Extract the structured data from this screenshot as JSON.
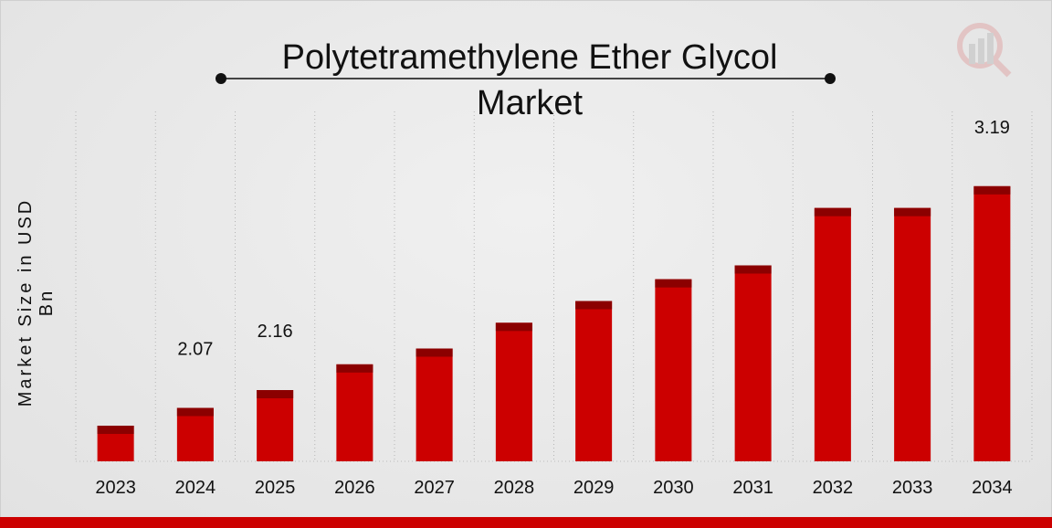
{
  "chart_data": {
    "type": "bar",
    "title": "Polytetramethylene Ether Glycol Market",
    "title_lines": [
      "Polytetramethylene Ether Glycol",
      "Market"
    ],
    "xlabel": "",
    "ylabel": "Market Size in USD Bn",
    "categories": [
      "2023",
      "2024",
      "2025",
      "2026",
      "2027",
      "2028",
      "2029",
      "2030",
      "2031",
      "2032",
      "2033",
      "2034"
    ],
    "values": [
      1.98,
      2.07,
      2.16,
      2.29,
      2.37,
      2.5,
      2.61,
      2.72,
      2.79,
      3.08,
      3.08,
      3.19
    ],
    "data_labels": {
      "1": "2.07",
      "2": "2.16",
      "11": "3.19"
    },
    "ylim": [
      1.8,
      3.3
    ],
    "grid": "vertical-dashed",
    "colors": {
      "bar": "#cc0000",
      "bar_cap": "#8b0000",
      "strip": "#cc0000"
    }
  }
}
